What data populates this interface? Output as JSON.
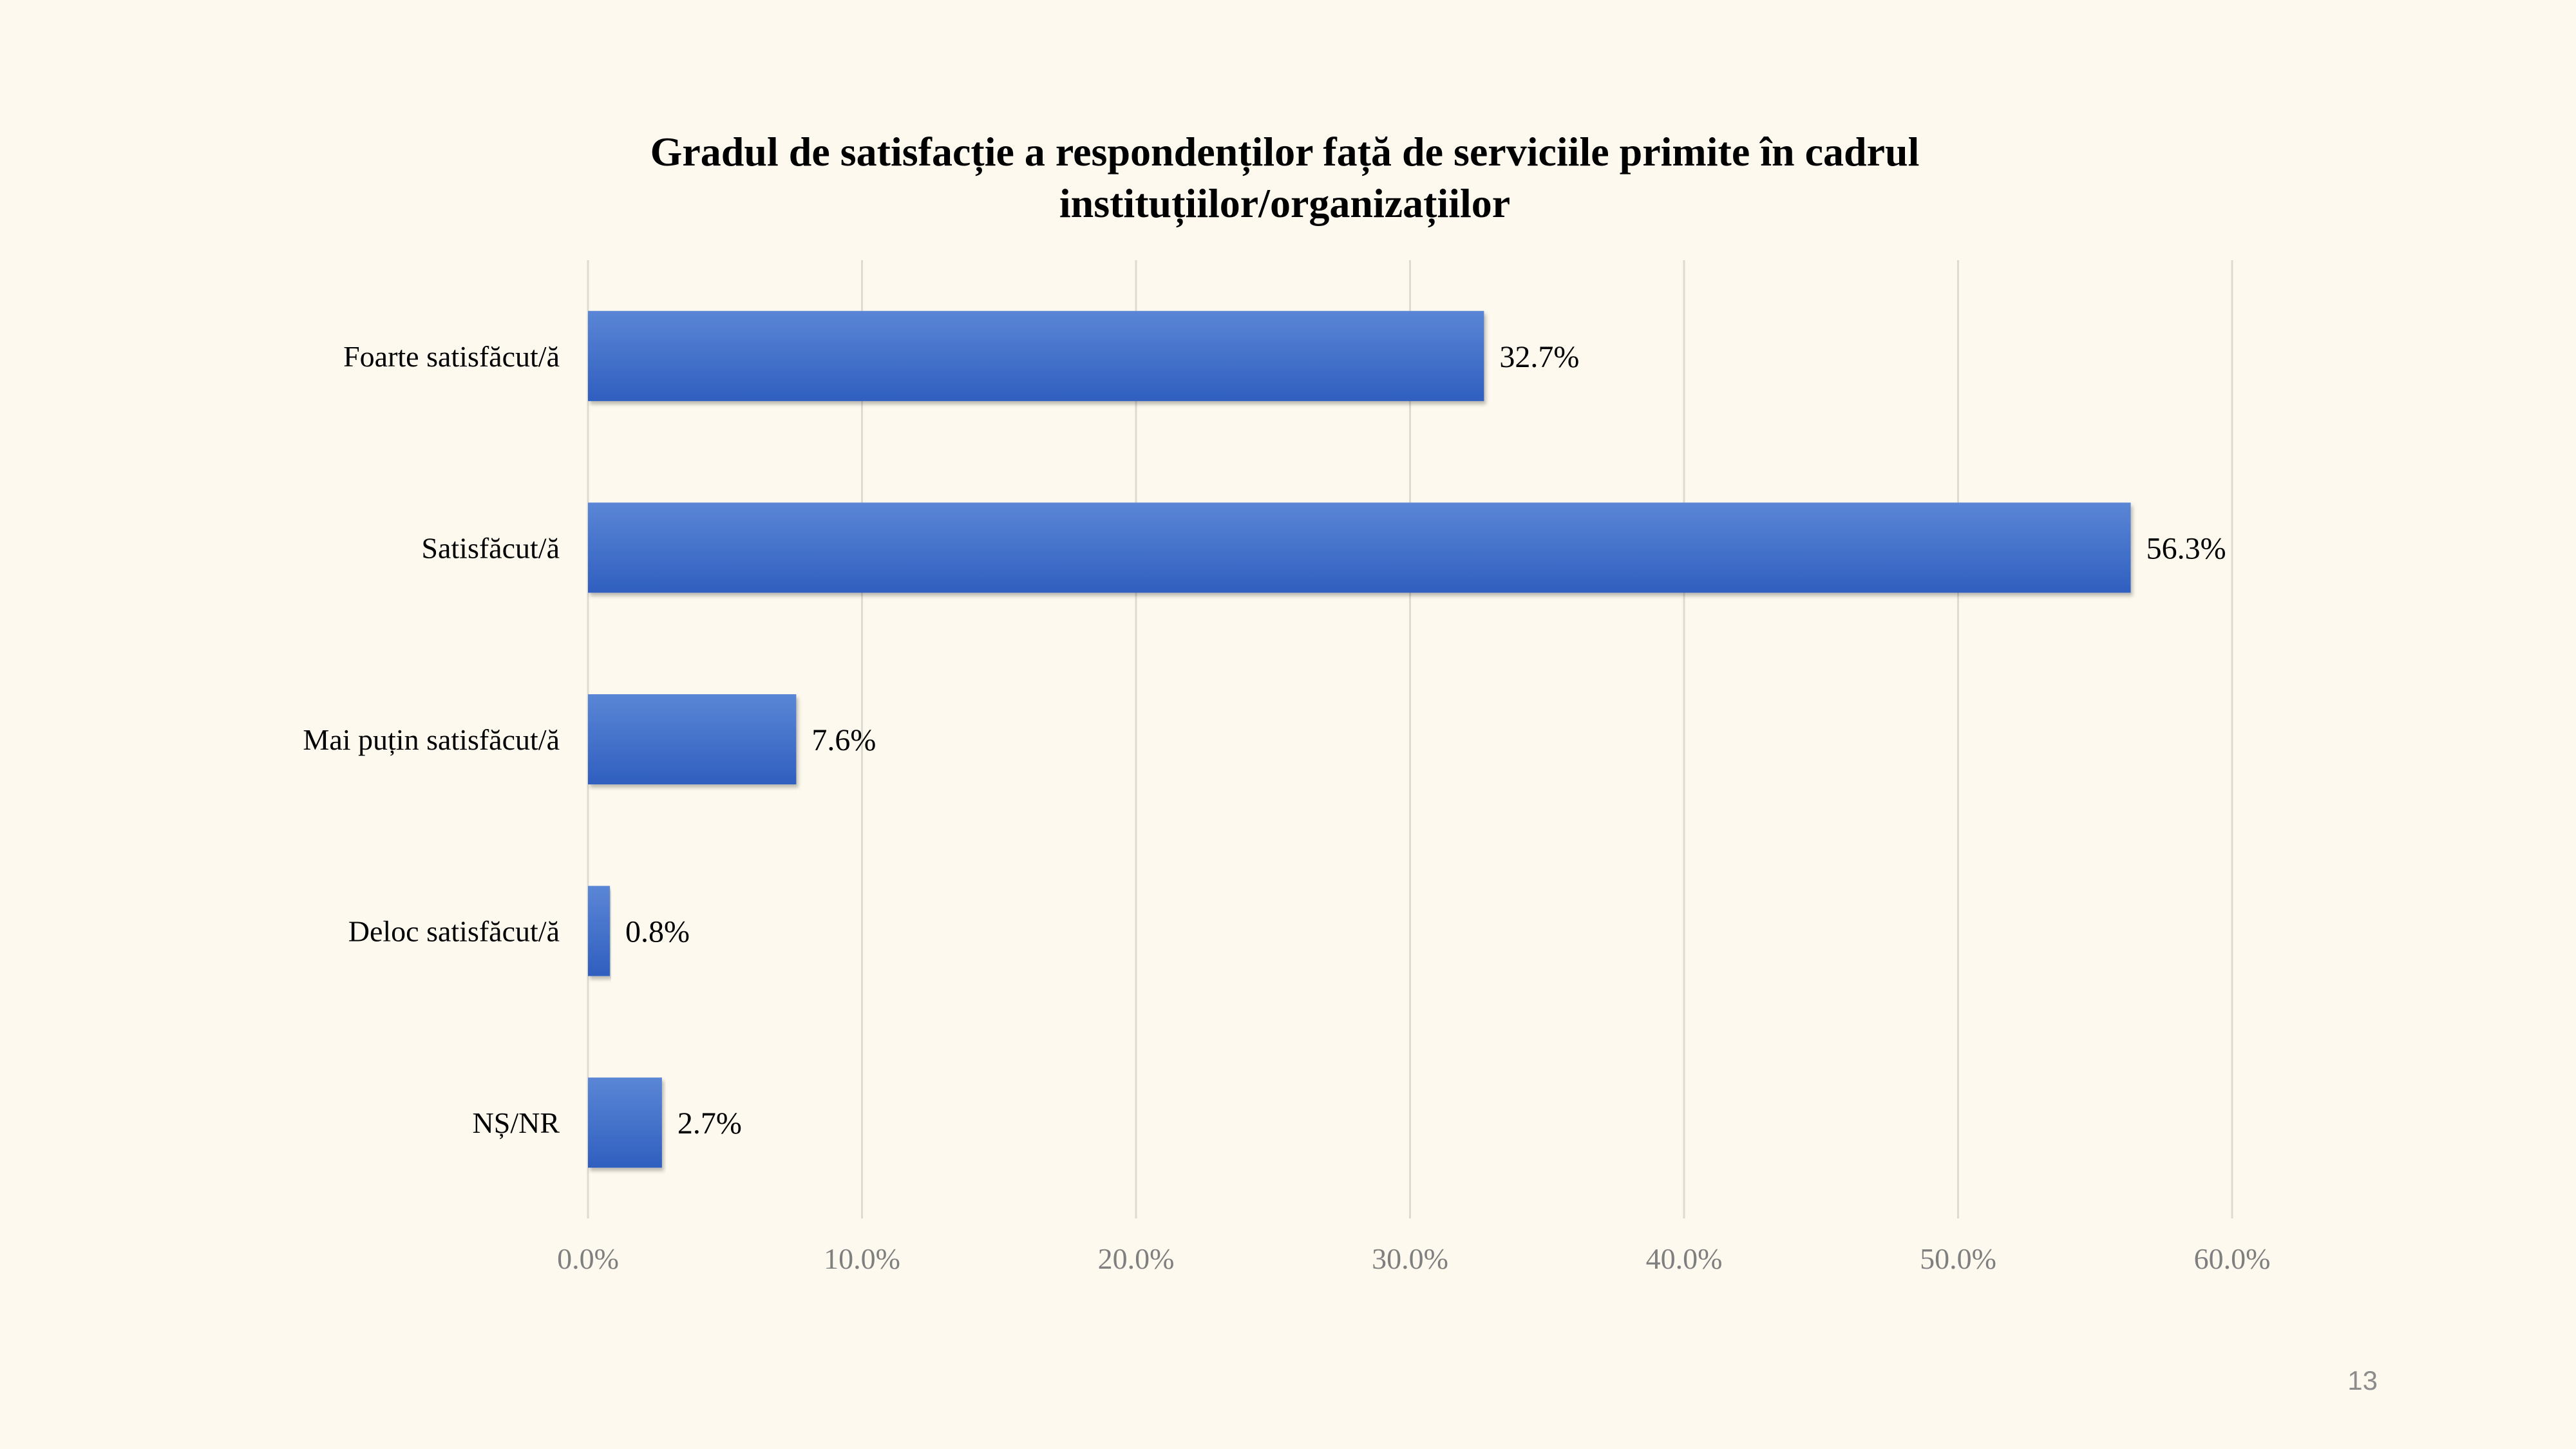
{
  "slide": {
    "page_number": "13"
  },
  "colors": {
    "background": "#fdf9ee",
    "bar_top": "#5b86d6",
    "bar_bottom": "#2f5fbf",
    "gridline": "#dedbd2",
    "tick_text": "#7f7f7f"
  },
  "chart_data": {
    "type": "bar",
    "orientation": "horizontal",
    "title_lines": [
      "Gradul de satisfacție a respondenților față de serviciile primite în cadrul",
      "instituțiilor/organizațiilor"
    ],
    "categories": [
      "Foarte satisfăcut/ă",
      "Satisfăcut/ă",
      "Mai puțin satisfăcut/ă",
      "Deloc satisfăcut/ă",
      "NȘ/NR"
    ],
    "values": [
      32.7,
      56.3,
      7.6,
      0.8,
      2.7
    ],
    "value_labels": [
      "32.7%",
      "56.3%",
      "7.6%",
      "0.8%",
      "2.7%"
    ],
    "x_ticks": [
      0,
      10,
      20,
      30,
      40,
      50,
      60
    ],
    "x_tick_labels": [
      "0.0%",
      "10.0%",
      "20.0%",
      "30.0%",
      "40.0%",
      "50.0%",
      "60.0%"
    ],
    "xlim": [
      0,
      60
    ],
    "xlabel": "",
    "ylabel": "",
    "grid": "vertical",
    "legend": "none"
  }
}
